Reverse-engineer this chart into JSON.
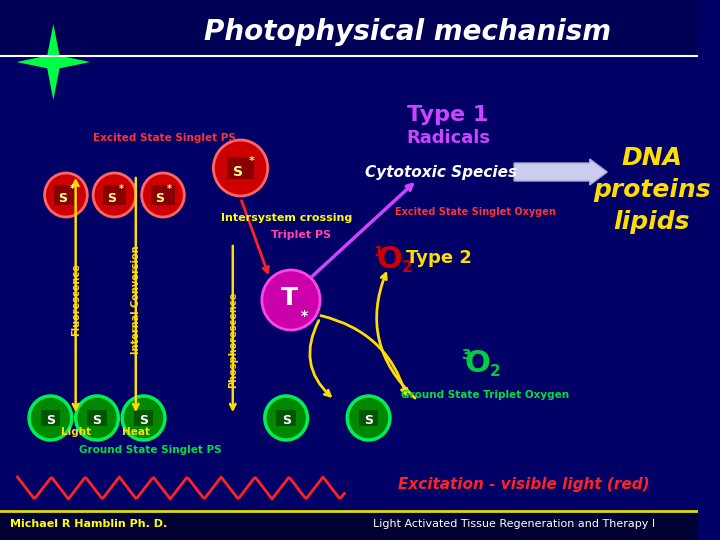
{
  "bg_color": "#000066",
  "title": "Photophysical mechanism",
  "title_color": "white",
  "type1_label": "Type 1",
  "type1_color": "#cc44ff",
  "radicals_label": "Radicals",
  "radicals_color": "#cc44ff",
  "cytotoxic_label": "Cytotoxic Species",
  "cytotoxic_color": "white",
  "dna_lines": [
    "DNA",
    "proteins",
    "lipids"
  ],
  "dna_color": "#ffdd00",
  "excited_singlet_label": "Excited State Singlet PS",
  "excited_singlet_color": "#ff3333",
  "intersystem_label": "Intersystem crossing",
  "intersystem_color": "#ffff00",
  "triplet_label": "Triplet PS",
  "triplet_color": "#ff44aa",
  "fluorescence_label": "Fluorescence",
  "internal_conv_label": "Internal Conversion",
  "phosphorescence_label": "Phosphorescence",
  "vertical_label_color": "#ffdd00",
  "light_label": "Light",
  "heat_label": "Heat",
  "light_heat_color": "#ffdd00",
  "excited_singlet_oxygen_label": "Excited State Singlet Oxygen",
  "excited_singlet_oxygen_color": "#ff3333",
  "o2_type2_label": "Type 2",
  "o2_type2_color": "#ffdd00",
  "ground_triplet_label": "Ground State Triplet Oxygen",
  "ground_triplet_color": "#00dd44",
  "ground_singlet_label": "Ground State Singlet PS",
  "ground_singlet_color": "#00dd44",
  "excitation_label": "Excitation - visible light (red)",
  "excitation_color": "#ff2222",
  "bottom_left_label": "Michael R Hamblin Ph. D.",
  "bottom_left_color": "#ffff00",
  "bottom_right_label": "Light Activated Tissue Regeneration and Therapy I",
  "bottom_right_color": "white",
  "red_circle_color": "#cc0000",
  "red_circle_edge": "#ff6666",
  "green_circle_color": "#008800",
  "green_circle_edge": "#00ee55",
  "magenta_circle_color": "#cc00aa",
  "magenta_circle_edge": "#ff44ee",
  "star_color": "#00ff44",
  "title_bar_color": "#000055",
  "bottom_bar_color": "#000033",
  "white_line_color": "#ffffff",
  "bottom_yellow_line": "#dddd00"
}
